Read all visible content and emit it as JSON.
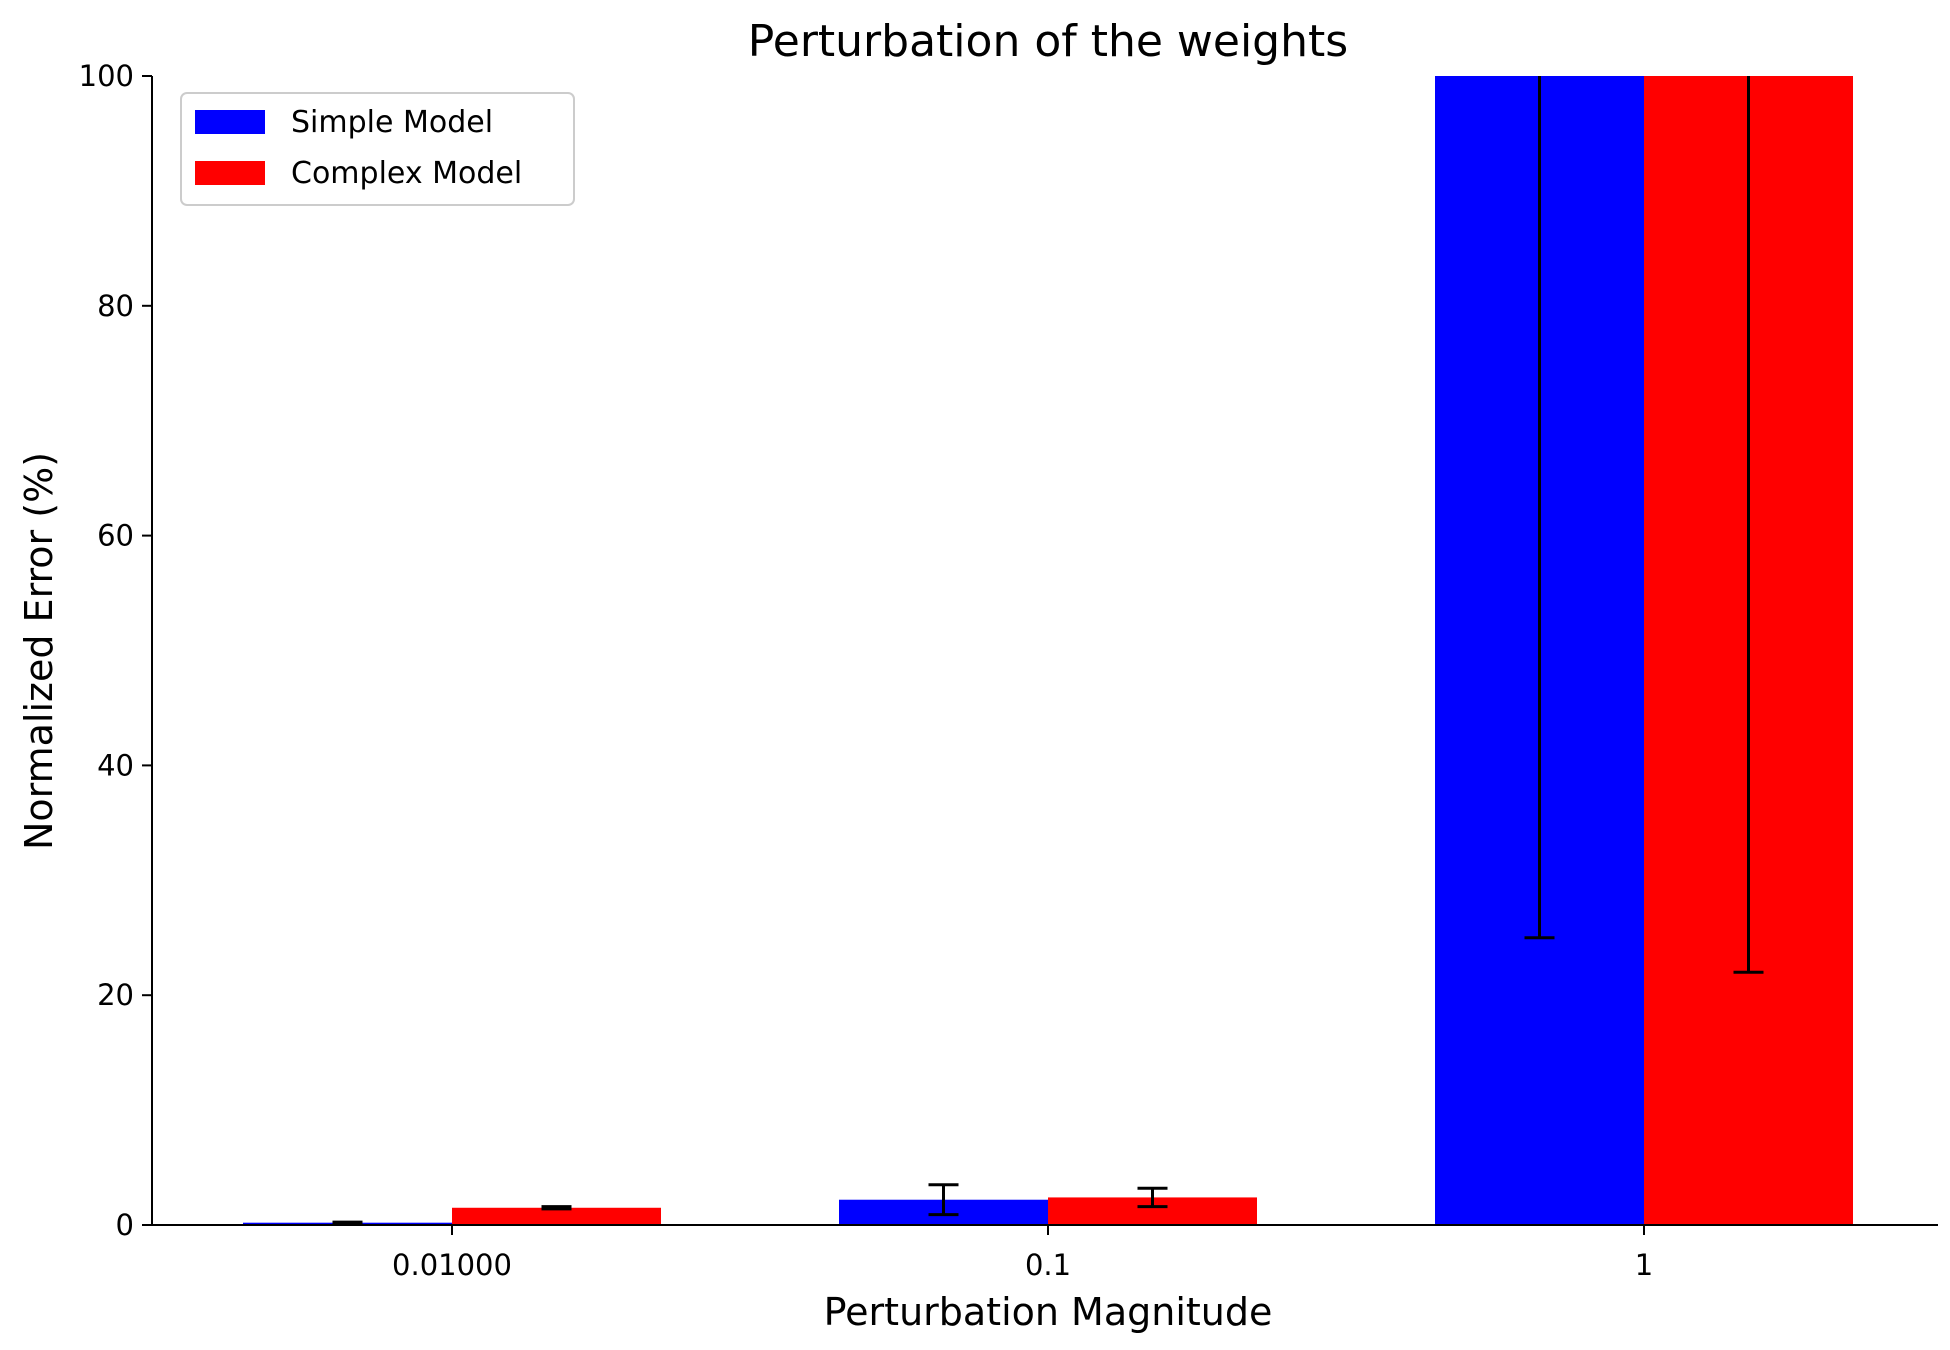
{
  "chart_data": {
    "type": "bar",
    "title": "Perturbation of the weights",
    "xlabel": "Perturbation Magnitude",
    "ylabel": "Normalized Error (%)",
    "categories": [
      "0.01000",
      "0.1",
      "1"
    ],
    "ylim": [
      0,
      100
    ],
    "yticks": [
      0,
      20,
      40,
      60,
      80,
      100
    ],
    "legend": "top-left",
    "grid": false,
    "series": [
      {
        "name": "Simple Model",
        "color": "#0000ff",
        "values": [
          0.2,
          2.2,
          100
        ],
        "err_low": [
          0.15,
          0.9,
          25
        ],
        "err_high": [
          0.25,
          3.5,
          100
        ]
      },
      {
        "name": "Complex Model",
        "color": "#ff0000",
        "values": [
          1.5,
          2.4,
          100
        ],
        "err_low": [
          1.4,
          1.6,
          22
        ],
        "err_high": [
          1.6,
          3.2,
          100
        ]
      }
    ]
  }
}
